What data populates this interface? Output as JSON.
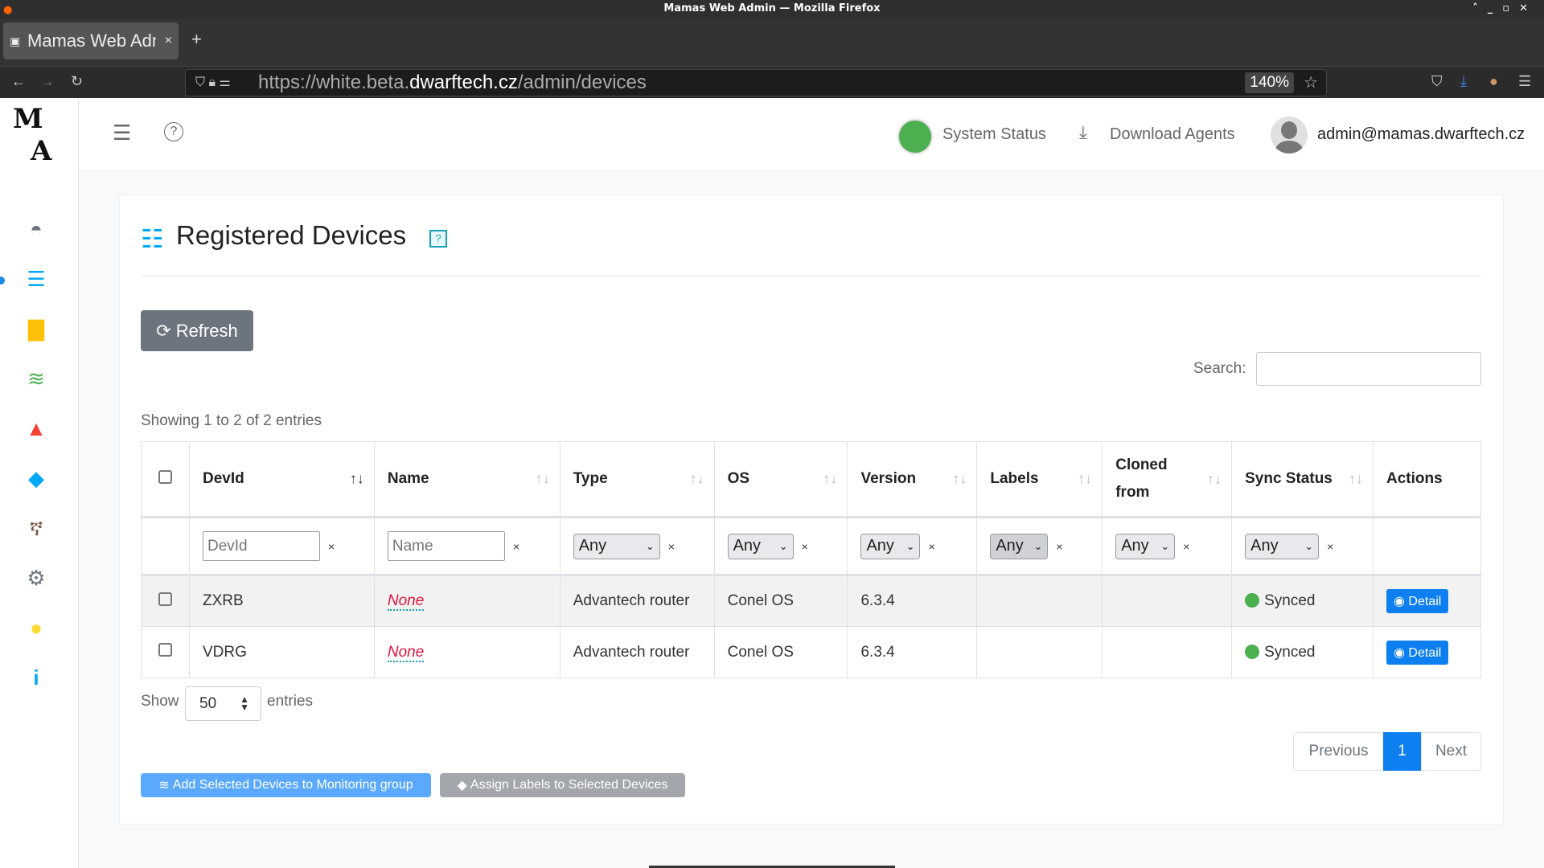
{
  "browser": {
    "window_title": "Mamas Web Admin — Mozilla Firefox",
    "tab_title": "Mamas Web Admin",
    "url_prefix": "https://white.beta.",
    "url_domain": "dwarftech.cz",
    "url_path": "/admin/devices",
    "zoom": "140%"
  },
  "header": {
    "system_status": "System Status",
    "download_agents": "Download Agents",
    "user": "admin@mamas.dwarftech.cz",
    "status_color": "#4caf50"
  },
  "sidebar": {
    "items": [
      {
        "icon": "dashboard-icon",
        "color": "#6c757d"
      },
      {
        "icon": "list-icon",
        "color": "#03a9f4",
        "active": true
      },
      {
        "icon": "file-icon",
        "color": "#ffc107"
      },
      {
        "icon": "layers-icon",
        "color": "#4caf50"
      },
      {
        "icon": "warning-icon",
        "color": "#f44336"
      },
      {
        "icon": "tags-icon",
        "color": "#03a9f4"
      },
      {
        "icon": "route-icon",
        "color": "#795548"
      },
      {
        "icon": "gear-icon",
        "color": "#6c757d"
      },
      {
        "icon": "question-icon",
        "color": "#ffeb3b"
      },
      {
        "icon": "info-icon",
        "color": "#03a9f4"
      }
    ]
  },
  "page": {
    "title": "Registered Devices",
    "help": "?",
    "refresh": "Refresh",
    "search_label": "Search:",
    "search_value": "",
    "showing": "Showing 1 to 2 of 2 entries"
  },
  "table": {
    "columns": [
      "DevId",
      "Name",
      "Type",
      "OS",
      "Version",
      "Labels",
      "Cloned from",
      "Sync Status",
      "Actions"
    ],
    "filters": {
      "devid_placeholder": "DevId",
      "name_placeholder": "Name",
      "any": "Any",
      "clear": "×"
    },
    "rows": [
      {
        "devid": "ZXRB",
        "name": "None",
        "type": "Advantech router",
        "os": "Conel OS",
        "version": "6.3.4",
        "labels": "",
        "cloned_from": "",
        "sync": "Synced",
        "action": "Detail"
      },
      {
        "devid": "VDRG",
        "name": "None",
        "type": "Advantech router",
        "os": "Conel OS",
        "version": "6.3.4",
        "labels": "",
        "cloned_from": "",
        "sync": "Synced",
        "action": "Detail"
      }
    ]
  },
  "footer": {
    "show": "Show",
    "page_size": "50",
    "entries": "entries",
    "previous": "Previous",
    "current_page": "1",
    "next": "Next",
    "add_group": "Add Selected Devices to Monitoring group",
    "assign_labels": "Assign Labels to Selected Devices"
  }
}
